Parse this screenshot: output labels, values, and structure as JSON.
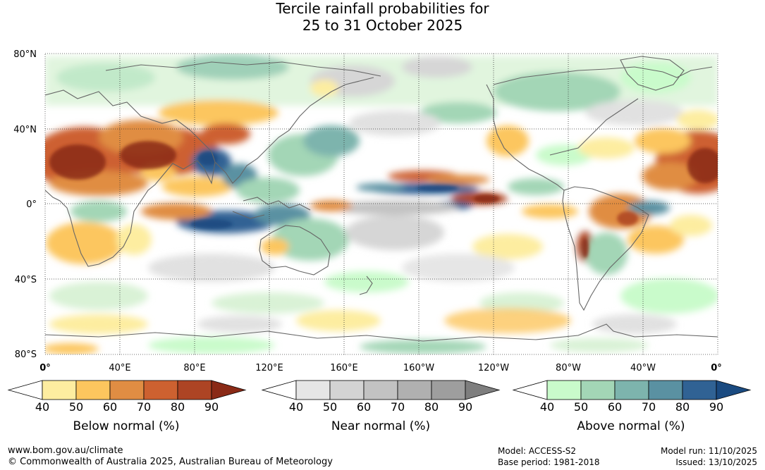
{
  "title": {
    "line1": "Tercile rainfall probabilities for",
    "line2": "25 to 31 October 2025"
  },
  "axes": {
    "lat_labels": [
      "80°N",
      "40°N",
      "0°",
      "40°S",
      "80°S"
    ],
    "lon_labels": [
      "0°",
      "40°E",
      "80°E",
      "120°E",
      "160°E",
      "160°W",
      "120°W",
      "80°W",
      "40°W",
      "0°"
    ]
  },
  "legends": [
    {
      "id": "below",
      "title": "Below normal (%)",
      "ticks": [
        "40",
        "50",
        "60",
        "70",
        "80",
        "90"
      ],
      "colors": [
        "#ffffff",
        "#fdeda0",
        "#fcc65e",
        "#e08d43",
        "#cd6130",
        "#ad4424",
        "#8a2a16"
      ]
    },
    {
      "id": "near",
      "title": "Near normal (%)",
      "ticks": [
        "40",
        "50",
        "60",
        "70",
        "80",
        "90"
      ],
      "colors": [
        "#ffffff",
        "#e6e6e6",
        "#d3d3d3",
        "#c2c2c2",
        "#b0b0b0",
        "#9e9e9e",
        "#7e7e7e"
      ]
    },
    {
      "id": "above",
      "title": "Above normal (%)",
      "ticks": [
        "40",
        "50",
        "60",
        "70",
        "80",
        "90"
      ],
      "colors": [
        "#ffffff",
        "#c9fbcb",
        "#a3d6b6",
        "#7db4ad",
        "#5a91a2",
        "#306294",
        "#1a4a80"
      ]
    }
  ],
  "footer": {
    "website": "www.bom.gov.au/climate",
    "copyright": "© Commonwealth of Australia 2025, Australian Bureau of Meteorology",
    "model": "Model: ACCESS-S2",
    "base_period": "Base period: 1981-2018",
    "model_run": "Model run: 11/10/2025",
    "issued": "Issued: 13/10/2025"
  }
}
